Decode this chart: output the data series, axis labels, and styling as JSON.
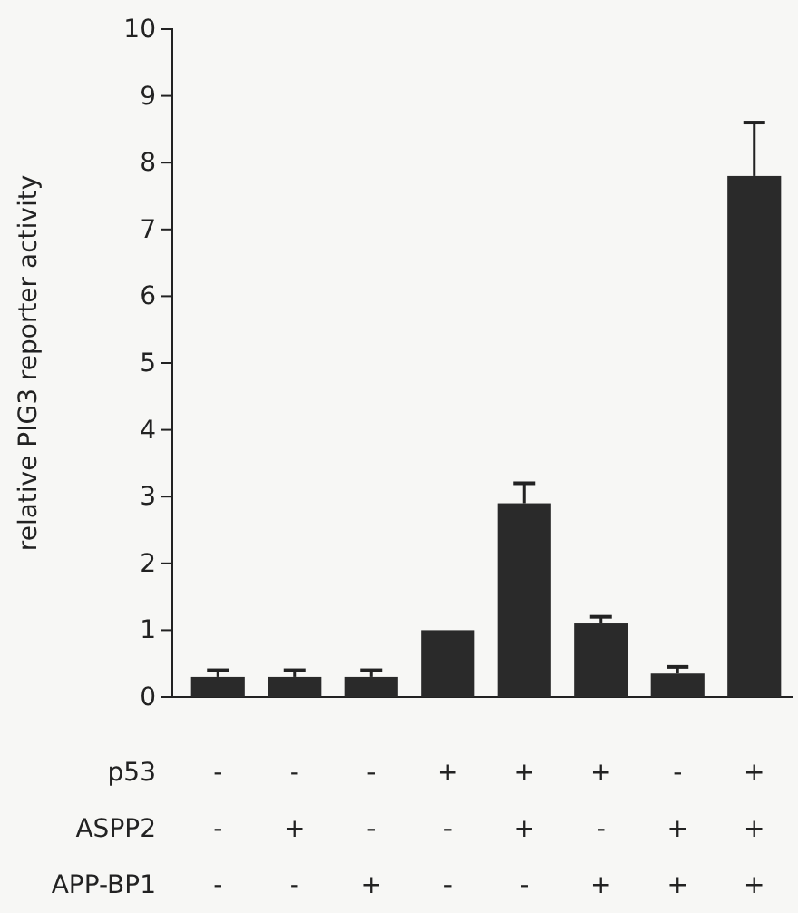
{
  "chart_data": {
    "type": "bar",
    "ylabel": "relative PIG3 reporter activity",
    "categories": [
      "-\n-\n-",
      "-\n+\n-",
      "-\n-\n+",
      "+\n-\n-",
      "+\n+\n-",
      "+\n-\n+",
      "-\n+\n+",
      "+\n+\n+"
    ],
    "values": [
      0.3,
      0.3,
      0.3,
      1.0,
      2.9,
      1.1,
      0.35,
      7.8
    ],
    "errors": [
      0.1,
      0.1,
      0.1,
      null,
      0.3,
      0.1,
      0.1,
      0.8
    ],
    "color": "#2a2a2a",
    "ylim": [
      0,
      10
    ],
    "yticks": [
      0,
      1,
      2,
      3,
      4,
      5,
      6,
      7,
      8,
      9,
      10
    ],
    "annotations": [
      "p53",
      "ASPP2",
      "APP-BP1"
    ]
  }
}
